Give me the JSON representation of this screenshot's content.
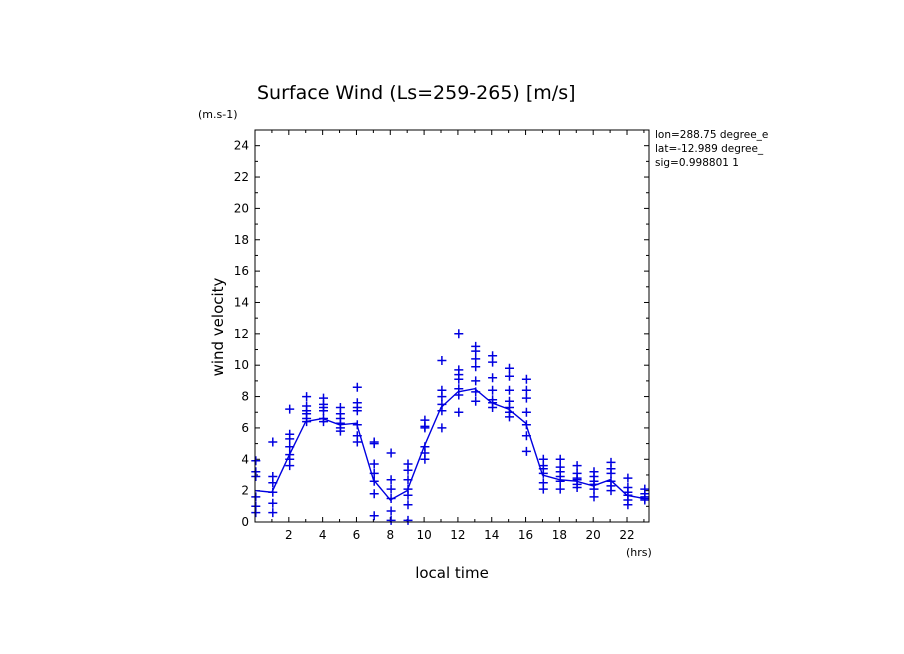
{
  "chart_data": {
    "type": "scatter",
    "title": "Surface Wind  (Ls=259-265) [m/s]",
    "xlabel": "local time",
    "ylabel": "wind velocity",
    "x_unit": "(hrs)",
    "y_unit": "(m.s-1)",
    "xlim": [
      0,
      23.3
    ],
    "ylim": [
      0,
      25
    ],
    "x_ticks": [
      2,
      4,
      6,
      8,
      10,
      12,
      14,
      16,
      18,
      20,
      22
    ],
    "y_ticks": [
      0,
      2,
      4,
      6,
      8,
      10,
      12,
      14,
      16,
      18,
      20,
      22,
      24
    ],
    "info_lines": [
      "lon=288.75 degree_e",
      "lat=-12.989 degree_",
      "sig=0.998801 1"
    ],
    "colors": {
      "series": "#0000e0",
      "axis": "#000000"
    },
    "series": [
      {
        "type": "line",
        "x": [
          0,
          1,
          2,
          3,
          4,
          5,
          6,
          7,
          8,
          9,
          10,
          11,
          12,
          13,
          14,
          15,
          16,
          17,
          18,
          19,
          20,
          21,
          22,
          23
        ],
        "y": [
          2.0,
          1.9,
          4.2,
          6.4,
          6.6,
          6.2,
          6.3,
          2.7,
          1.4,
          2.0,
          4.8,
          7.3,
          8.3,
          8.5,
          7.6,
          7.2,
          6.3,
          3.0,
          2.7,
          2.6,
          2.3,
          2.7,
          1.7,
          1.5
        ]
      },
      {
        "type": "scatter",
        "marker": "+",
        "points": [
          [
            0.05,
            3.9
          ],
          [
            0.05,
            3.2
          ],
          [
            0.05,
            2.9
          ],
          [
            0.05,
            1.6
          ],
          [
            0.05,
            1.0
          ],
          [
            0.05,
            0.6
          ],
          [
            1.05,
            5.1
          ],
          [
            1.05,
            2.9
          ],
          [
            1.05,
            2.5
          ],
          [
            1.05,
            1.9
          ],
          [
            1.05,
            1.2
          ],
          [
            1.05,
            0.6
          ],
          [
            2.05,
            7.2
          ],
          [
            2.05,
            5.6
          ],
          [
            2.05,
            5.3
          ],
          [
            2.05,
            4.8
          ],
          [
            2.05,
            4.3
          ],
          [
            2.05,
            4.0
          ],
          [
            2.05,
            3.6
          ],
          [
            3.05,
            8.0
          ],
          [
            3.05,
            7.4
          ],
          [
            3.05,
            7.1
          ],
          [
            3.05,
            6.9
          ],
          [
            3.05,
            6.6
          ],
          [
            3.05,
            6.4
          ],
          [
            4.05,
            7.9
          ],
          [
            4.05,
            7.5
          ],
          [
            4.05,
            7.3
          ],
          [
            4.05,
            7.1
          ],
          [
            4.05,
            6.6
          ],
          [
            4.05,
            6.4
          ],
          [
            5.05,
            7.3
          ],
          [
            5.05,
            6.9
          ],
          [
            5.05,
            6.6
          ],
          [
            5.05,
            6.3
          ],
          [
            5.05,
            6.0
          ],
          [
            5.05,
            5.8
          ],
          [
            6.05,
            8.6
          ],
          [
            6.05,
            7.6
          ],
          [
            6.05,
            7.3
          ],
          [
            6.05,
            7.1
          ],
          [
            6.05,
            6.2
          ],
          [
            6.05,
            5.5
          ],
          [
            6.05,
            5.1
          ],
          [
            7.05,
            5.1
          ],
          [
            7.05,
            5.0
          ],
          [
            7.05,
            3.7
          ],
          [
            7.05,
            3.1
          ],
          [
            7.05,
            2.6
          ],
          [
            7.05,
            1.8
          ],
          [
            7.05,
            0.4
          ],
          [
            8.05,
            4.4
          ],
          [
            8.05,
            2.7
          ],
          [
            8.05,
            2.1
          ],
          [
            8.05,
            1.5
          ],
          [
            8.05,
            0.7
          ],
          [
            8.05,
            0.1
          ],
          [
            9.05,
            3.7
          ],
          [
            9.05,
            3.3
          ],
          [
            9.05,
            2.7
          ],
          [
            9.05,
            2.1
          ],
          [
            9.05,
            1.7
          ],
          [
            9.05,
            1.1
          ],
          [
            9.05,
            0.1
          ],
          [
            10.05,
            6.5
          ],
          [
            10.05,
            6.1
          ],
          [
            10.05,
            6.0
          ],
          [
            10.05,
            4.8
          ],
          [
            10.05,
            4.4
          ],
          [
            10.05,
            4.0
          ],
          [
            11.05,
            10.3
          ],
          [
            11.05,
            8.4
          ],
          [
            11.05,
            8.0
          ],
          [
            11.05,
            7.5
          ],
          [
            11.05,
            7.1
          ],
          [
            11.05,
            6.0
          ],
          [
            12.05,
            12.0
          ],
          [
            12.05,
            9.7
          ],
          [
            12.05,
            9.4
          ],
          [
            12.05,
            9.1
          ],
          [
            12.05,
            8.5
          ],
          [
            12.05,
            8.1
          ],
          [
            12.05,
            7.0
          ],
          [
            13.05,
            11.2
          ],
          [
            13.05,
            10.9
          ],
          [
            13.05,
            10.4
          ],
          [
            13.05,
            9.9
          ],
          [
            13.05,
            9.0
          ],
          [
            13.05,
            8.3
          ],
          [
            13.05,
            7.7
          ],
          [
            14.05,
            10.6
          ],
          [
            14.05,
            10.2
          ],
          [
            14.05,
            9.2
          ],
          [
            14.05,
            8.4
          ],
          [
            14.05,
            7.8
          ],
          [
            14.05,
            7.6
          ],
          [
            14.05,
            7.3
          ],
          [
            15.05,
            9.8
          ],
          [
            15.05,
            9.3
          ],
          [
            15.05,
            8.4
          ],
          [
            15.05,
            7.7
          ],
          [
            15.05,
            7.3
          ],
          [
            15.05,
            7.0
          ],
          [
            15.05,
            6.7
          ],
          [
            16.05,
            9.1
          ],
          [
            16.05,
            8.4
          ],
          [
            16.05,
            7.9
          ],
          [
            16.05,
            7.0
          ],
          [
            16.05,
            6.2
          ],
          [
            16.05,
            5.5
          ],
          [
            16.05,
            4.5
          ],
          [
            17.05,
            4.0
          ],
          [
            17.05,
            3.6
          ],
          [
            17.05,
            3.4
          ],
          [
            17.05,
            3.1
          ],
          [
            17.05,
            2.5
          ],
          [
            17.05,
            2.1
          ],
          [
            18.05,
            4.0
          ],
          [
            18.05,
            3.5
          ],
          [
            18.05,
            3.2
          ],
          [
            18.05,
            2.9
          ],
          [
            18.05,
            2.6
          ],
          [
            18.05,
            2.1
          ],
          [
            19.05,
            3.6
          ],
          [
            19.05,
            3.1
          ],
          [
            19.05,
            2.8
          ],
          [
            19.05,
            2.7
          ],
          [
            19.05,
            2.4
          ],
          [
            19.05,
            2.2
          ],
          [
            20.05,
            3.2
          ],
          [
            20.05,
            2.9
          ],
          [
            20.05,
            2.6
          ],
          [
            20.05,
            2.4
          ],
          [
            20.05,
            2.1
          ],
          [
            20.05,
            1.6
          ],
          [
            21.05,
            3.8
          ],
          [
            21.05,
            3.4
          ],
          [
            21.05,
            3.1
          ],
          [
            21.05,
            2.6
          ],
          [
            21.05,
            2.3
          ],
          [
            21.05,
            2.0
          ],
          [
            22.05,
            2.8
          ],
          [
            22.05,
            2.2
          ],
          [
            22.05,
            1.9
          ],
          [
            22.05,
            1.7
          ],
          [
            22.05,
            1.4
          ],
          [
            22.05,
            1.1
          ],
          [
            23.05,
            2.1
          ],
          [
            23.05,
            1.8
          ],
          [
            23.05,
            1.6
          ],
          [
            23.05,
            1.5
          ],
          [
            23.05,
            1.4
          ]
        ]
      }
    ]
  }
}
